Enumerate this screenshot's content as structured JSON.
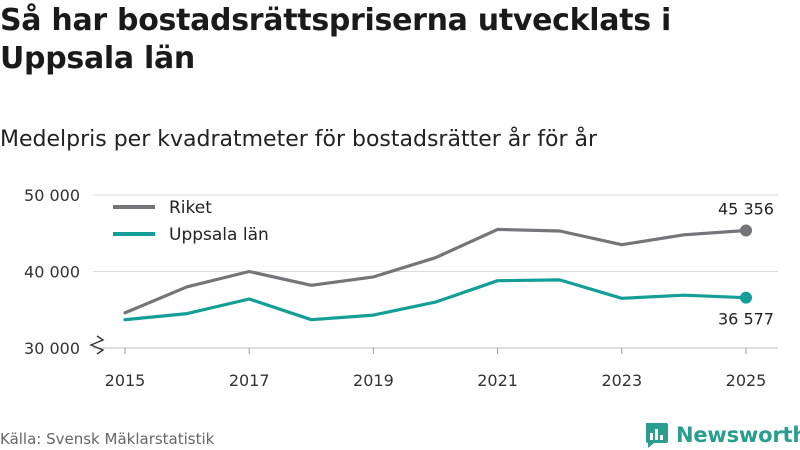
{
  "title": "Så har bostadsrättspriserna utvecklats i Uppsala län",
  "subtitle": "Medelpris per kvadratmeter för bostadsrätter år för år",
  "source": "Källa: Svensk Mäklarstatistik",
  "brand": {
    "name": "Newsworthy",
    "icon": "newsworthy-bar-icon"
  },
  "colors": {
    "riket": "#747479",
    "uppsala": "#139e98",
    "grid": "#dcdcdc",
    "text": "#333333"
  },
  "chart_data": {
    "type": "line",
    "title": "Så har bostadsrättspriserna utvecklats i Uppsala län",
    "subtitle": "Medelpris per kvadratmeter för bostadsrätter år för år",
    "xlabel": "",
    "ylabel": "",
    "x": [
      2015,
      2016,
      2017,
      2018,
      2019,
      2020,
      2021,
      2022,
      2023,
      2024,
      2025
    ],
    "xticks": [
      "2015",
      "2017",
      "2019",
      "2021",
      "2023",
      "2025"
    ],
    "ylim": [
      30000,
      50000
    ],
    "yticks": [
      30000,
      40000,
      50000
    ],
    "ytick_labels": [
      "30 000",
      "40 000",
      "50 000"
    ],
    "axis_break": true,
    "grid": true,
    "legend_position": "top-left",
    "series": [
      {
        "name": "Riket",
        "key": "riket",
        "values": [
          34600,
          38000,
          40000,
          38200,
          39300,
          41800,
          45500,
          45300,
          43500,
          44800,
          45356
        ],
        "end_label": "45 356"
      },
      {
        "name": "Uppsala län",
        "key": "uppsala",
        "values": [
          33700,
          34500,
          36400,
          33700,
          34300,
          36000,
          38800,
          38900,
          36500,
          36900,
          36577
        ],
        "end_label": "36 577"
      }
    ]
  }
}
